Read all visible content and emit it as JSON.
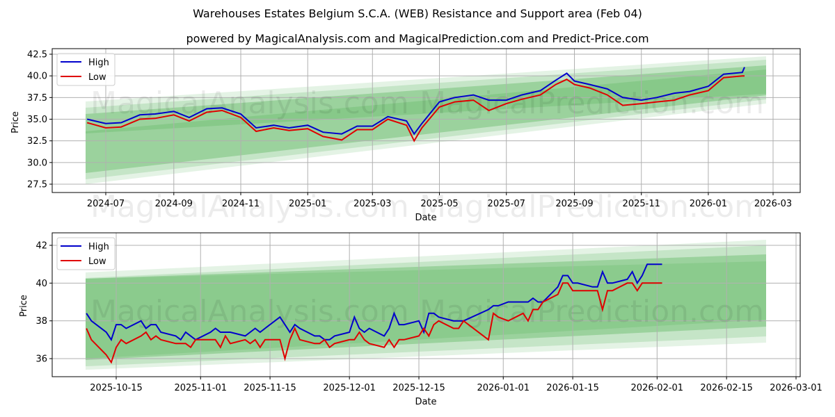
{
  "header": {
    "title": "Warehouses Estates Belgium S.C.A. (WEB) Resistance and Support area (Feb 04)",
    "subtitle": "powered by MagicalAnalysis.com and MagicalPrediction.com and Predict-Price.com"
  },
  "watermarks": [
    "MagicalAnalysis.com",
    "MagicalPrediction.com"
  ],
  "colors": {
    "high": "#0000cc",
    "low": "#e00000",
    "band": "#4caf50",
    "grid": "#b0b0b0"
  },
  "chart_data": [
    {
      "type": "line",
      "title": "Warehouses Estates Belgium S.C.A. (WEB) Resistance and Support area (Feb 04)",
      "xlabel": "Date",
      "ylabel": "Price",
      "ylim": [
        26.5,
        43.0
      ],
      "yticks": [
        "27.5",
        "30.0",
        "32.5",
        "35.0",
        "37.5",
        "40.0",
        "42.5"
      ],
      "xticks": [
        "2024-07",
        "2024-09",
        "2024-11",
        "2025-01",
        "2025-03",
        "2025-05",
        "2025-07",
        "2025-09",
        "2025-11",
        "2026-01",
        "2026-03"
      ],
      "grid": true,
      "legend": {
        "position": "upper left",
        "entries": [
          "High",
          "Low"
        ]
      },
      "x": [
        "2024-06-14",
        "2024-07-01",
        "2024-07-15",
        "2024-08-01",
        "2024-08-15",
        "2024-09-01",
        "2024-09-15",
        "2024-10-01",
        "2024-10-15",
        "2024-11-01",
        "2024-11-15",
        "2024-12-01",
        "2024-12-15",
        "2025-01-01",
        "2025-01-15",
        "2025-02-01",
        "2025-02-15",
        "2025-03-01",
        "2025-03-15",
        "2025-04-01",
        "2025-04-08",
        "2025-04-15",
        "2025-05-01",
        "2025-05-15",
        "2025-06-01",
        "2025-06-15",
        "2025-07-01",
        "2025-07-15",
        "2025-08-01",
        "2025-08-15",
        "2025-08-25",
        "2025-09-01",
        "2025-09-15",
        "2025-10-01",
        "2025-10-15",
        "2025-11-01",
        "2025-11-15",
        "2025-12-01",
        "2025-12-15",
        "2026-01-01",
        "2026-01-15",
        "2026-02-01",
        "2026-02-03"
      ],
      "series": [
        {
          "name": "High",
          "values": [
            35.0,
            34.5,
            34.6,
            35.5,
            35.6,
            35.9,
            35.2,
            36.2,
            36.3,
            35.6,
            34.0,
            34.3,
            34.0,
            34.3,
            33.5,
            33.3,
            34.2,
            34.2,
            35.3,
            34.8,
            33.3,
            34.5,
            37.0,
            37.5,
            37.8,
            37.2,
            37.2,
            37.8,
            38.3,
            39.5,
            40.3,
            39.4,
            39.0,
            38.5,
            37.5,
            37.2,
            37.5,
            38.0,
            38.2,
            38.8,
            40.2,
            40.4,
            41.0
          ]
        },
        {
          "name": "Low",
          "values": [
            34.6,
            34.0,
            34.1,
            35.0,
            35.1,
            35.5,
            34.8,
            35.8,
            36.0,
            35.2,
            33.6,
            34.0,
            33.7,
            33.9,
            33.0,
            32.6,
            33.8,
            33.8,
            35.0,
            34.3,
            32.5,
            34.0,
            36.4,
            37.0,
            37.2,
            36.0,
            36.8,
            37.3,
            37.8,
            39.0,
            39.6,
            39.0,
            38.6,
            37.8,
            36.6,
            36.8,
            37.0,
            37.2,
            37.8,
            38.3,
            39.8,
            40.0,
            40.0
          ]
        },
        {
          "name": "Resistance/Support band (outer)",
          "start": [
            27.4,
            36.9
          ],
          "end": [
            37.0,
            42.1
          ]
        },
        {
          "name": "Resistance/Support band (inner)",
          "start": [
            28.8,
            35.4
          ],
          "end": [
            37.6,
            41.4
          ]
        }
      ]
    },
    {
      "type": "line",
      "xlabel": "Date",
      "ylabel": "Price",
      "ylim": [
        35.0,
        42.6
      ],
      "yticks": [
        "36",
        "38",
        "40",
        "42"
      ],
      "xticks": [
        "2025-10-15",
        "2025-11-01",
        "2025-11-15",
        "2025-12-01",
        "2025-12-15",
        "2026-01-01",
        "2026-01-15",
        "2026-02-01",
        "2026-02-15",
        "2026-03-01"
      ],
      "grid": true,
      "legend": {
        "position": "upper left",
        "entries": [
          "High",
          "Low"
        ]
      },
      "x": [
        "2025-10-09",
        "2025-10-10",
        "2025-10-13",
        "2025-10-14",
        "2025-10-15",
        "2025-10-16",
        "2025-10-17",
        "2025-10-20",
        "2025-10-21",
        "2025-10-22",
        "2025-10-23",
        "2025-10-24",
        "2025-10-27",
        "2025-10-28",
        "2025-10-29",
        "2025-10-30",
        "2025-10-31",
        "2025-11-03",
        "2025-11-04",
        "2025-11-05",
        "2025-11-06",
        "2025-11-07",
        "2025-11-10",
        "2025-11-11",
        "2025-11-12",
        "2025-11-13",
        "2025-11-14",
        "2025-11-17",
        "2025-11-18",
        "2025-11-19",
        "2025-11-20",
        "2025-11-21",
        "2025-11-24",
        "2025-11-25",
        "2025-11-26",
        "2025-11-27",
        "2025-11-28",
        "2025-12-01",
        "2025-12-02",
        "2025-12-03",
        "2025-12-04",
        "2025-12-05",
        "2025-12-08",
        "2025-12-09",
        "2025-12-10",
        "2025-12-11",
        "2025-12-12",
        "2025-12-15",
        "2025-12-16",
        "2025-12-17",
        "2025-12-18",
        "2025-12-19",
        "2025-12-22",
        "2025-12-23",
        "2025-12-24",
        "2025-12-29",
        "2025-12-30",
        "2025-12-31",
        "2026-01-02",
        "2026-01-05",
        "2026-01-06",
        "2026-01-07",
        "2026-01-08",
        "2026-01-09",
        "2026-01-12",
        "2026-01-13",
        "2026-01-14",
        "2026-01-15",
        "2026-01-16",
        "2026-01-19",
        "2026-01-20",
        "2026-01-21",
        "2026-01-22",
        "2026-01-23",
        "2026-01-26",
        "2026-01-27",
        "2026-01-28",
        "2026-01-29",
        "2026-01-30",
        "2026-02-02"
      ],
      "series": [
        {
          "name": "High",
          "values": [
            38.4,
            38.0,
            37.4,
            37.0,
            37.8,
            37.8,
            37.6,
            38.0,
            37.6,
            37.8,
            37.8,
            37.4,
            37.2,
            37.0,
            37.4,
            37.2,
            37.0,
            37.4,
            37.6,
            37.4,
            37.4,
            37.4,
            37.2,
            37.4,
            37.6,
            37.4,
            37.6,
            38.2,
            37.8,
            37.4,
            37.8,
            37.6,
            37.2,
            37.2,
            37.0,
            37.0,
            37.2,
            37.4,
            38.2,
            37.6,
            37.4,
            37.6,
            37.2,
            37.6,
            38.4,
            37.8,
            37.8,
            38.0,
            37.4,
            38.4,
            38.4,
            38.2,
            38.0,
            38.0,
            38.0,
            38.6,
            38.8,
            38.8,
            39.0,
            39.0,
            39.0,
            39.2,
            39.0,
            39.0,
            39.8,
            40.4,
            40.4,
            40.0,
            40.0,
            39.8,
            39.8,
            40.6,
            40.0,
            40.0,
            40.2,
            40.6,
            40.0,
            40.4,
            41.0,
            41.0
          ]
        },
        {
          "name": "Low",
          "values": [
            37.6,
            37.0,
            36.2,
            35.8,
            36.6,
            37.0,
            36.8,
            37.2,
            37.4,
            37.0,
            37.2,
            37.0,
            36.8,
            36.8,
            36.8,
            36.6,
            37.0,
            37.0,
            37.0,
            36.6,
            37.2,
            36.8,
            37.0,
            36.8,
            37.0,
            36.6,
            37.0,
            37.0,
            36.0,
            37.0,
            37.6,
            37.0,
            36.8,
            36.8,
            37.0,
            36.6,
            36.8,
            37.0,
            37.0,
            37.4,
            37.0,
            36.8,
            36.6,
            37.0,
            36.6,
            37.0,
            37.0,
            37.2,
            37.6,
            37.2,
            37.8,
            38.0,
            37.6,
            37.6,
            38.0,
            37.0,
            38.4,
            38.2,
            38.0,
            38.4,
            38.0,
            38.6,
            38.6,
            39.0,
            39.4,
            40.0,
            40.0,
            39.6,
            39.6,
            39.6,
            39.6,
            38.6,
            39.6,
            39.6,
            40.0,
            40.0,
            39.6,
            40.0,
            40.0,
            40.0
          ]
        },
        {
          "name": "Resistance/Support band (outer)",
          "start": [
            35.4,
            40.6
          ],
          "end": [
            36.9,
            42.3
          ]
        },
        {
          "name": "Resistance/Support band (inner)",
          "start": [
            36.0,
            40.2
          ],
          "end": [
            37.6,
            41.2
          ]
        }
      ]
    }
  ],
  "legend": {
    "high_label": "High",
    "low_label": "Low"
  },
  "chart1": {
    "ylabel": "Price",
    "xlabel": "Date",
    "yticks": [
      "42.5",
      "40.0",
      "37.5",
      "35.0",
      "32.5",
      "30.0",
      "27.5"
    ],
    "xticks": [
      "2024-07",
      "2024-09",
      "2024-11",
      "2025-01",
      "2025-03",
      "2025-05",
      "2025-07",
      "2025-09",
      "2025-11",
      "2026-01",
      "2026-03"
    ]
  },
  "chart2": {
    "ylabel": "Price",
    "xlabel": "Date",
    "yticks": [
      "42",
      "40",
      "38",
      "36"
    ],
    "xticks": [
      "2025-10-15",
      "2025-11-01",
      "2025-11-15",
      "2025-12-01",
      "2025-12-15",
      "2026-01-01",
      "2026-01-15",
      "2026-02-01",
      "2026-02-15",
      "2026-03-01"
    ]
  }
}
